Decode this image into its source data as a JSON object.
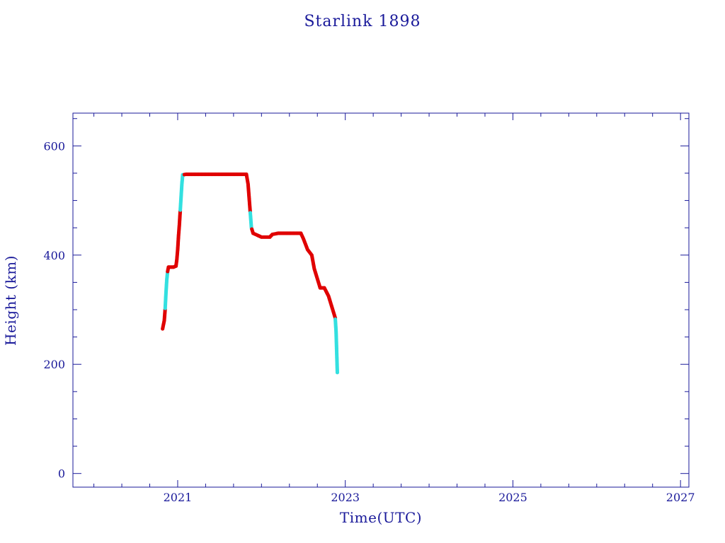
{
  "chart_data": {
    "type": "scatter",
    "title": "Starlink 1898",
    "xlabel": "Time(UTC)",
    "ylabel": "Height (km)",
    "xlim": [
      2019.75,
      2027.1
    ],
    "ylim": [
      -25,
      660
    ],
    "x_ticks": [
      2021,
      2023,
      2025,
      2027
    ],
    "y_ticks": [
      0,
      200,
      400,
      600
    ],
    "grid": false,
    "legend": "none",
    "colors": {
      "axis": "#1a1a9a",
      "series_main": "#e00000",
      "series_alt": "#33e0e0"
    },
    "series": [
      {
        "points": [
          [
            2020.82,
            265
          ],
          [
            2020.84,
            280
          ],
          [
            2020.85,
            300
          ],
          [
            2020.86,
            330
          ],
          [
            2020.87,
            355
          ],
          [
            2020.88,
            370
          ],
          [
            2020.89,
            378
          ],
          [
            2020.92,
            378
          ],
          [
            2020.95,
            378
          ],
          [
            2020.98,
            380
          ],
          [
            2020.99,
            392
          ],
          [
            2021.0,
            410
          ],
          [
            2021.01,
            435
          ],
          [
            2021.02,
            455
          ],
          [
            2021.03,
            480
          ],
          [
            2021.04,
            505
          ],
          [
            2021.05,
            530
          ],
          [
            2021.06,
            547
          ],
          [
            2021.1,
            548
          ],
          [
            2021.3,
            548
          ],
          [
            2021.5,
            548
          ],
          [
            2021.7,
            548
          ],
          [
            2021.82,
            548
          ],
          [
            2021.84,
            530
          ],
          [
            2021.85,
            510
          ],
          [
            2021.86,
            490
          ],
          [
            2021.87,
            470
          ],
          [
            2021.88,
            450
          ],
          [
            2021.9,
            440
          ],
          [
            2022.0,
            433
          ],
          [
            2022.1,
            433
          ],
          [
            2022.13,
            438
          ],
          [
            2022.2,
            440
          ],
          [
            2022.3,
            440
          ],
          [
            2022.4,
            440
          ],
          [
            2022.47,
            440
          ],
          [
            2022.5,
            430
          ],
          [
            2022.55,
            410
          ],
          [
            2022.6,
            400
          ],
          [
            2022.63,
            375
          ],
          [
            2022.66,
            360
          ],
          [
            2022.7,
            340
          ],
          [
            2022.75,
            340
          ],
          [
            2022.8,
            325
          ],
          [
            2022.85,
            300
          ],
          [
            2022.88,
            285
          ],
          [
            2022.89,
            260
          ],
          [
            2022.895,
            235
          ],
          [
            2022.9,
            210
          ],
          [
            2022.905,
            185
          ]
        ]
      }
    ]
  }
}
